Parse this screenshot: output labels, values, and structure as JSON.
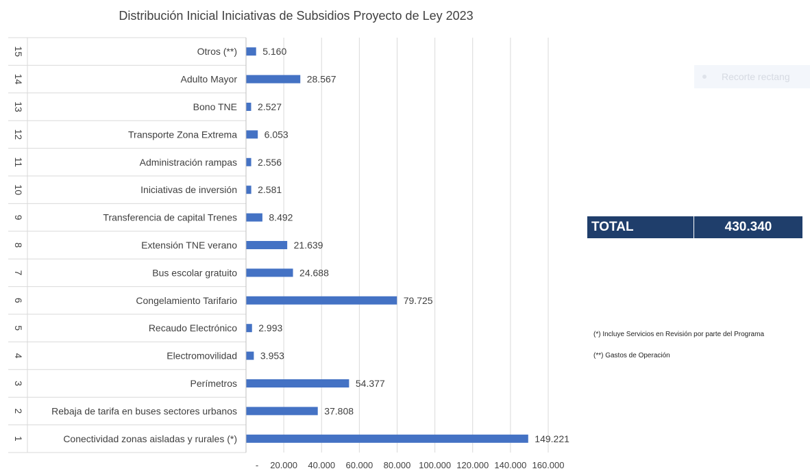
{
  "chart_data": {
    "type": "bar",
    "orientation": "horizontal",
    "title": "Distribución Inicial Iniciativas de Subsidios Proyecto de Ley 2023",
    "row_numbers": [
      "15",
      "14",
      "13",
      "12",
      "11",
      "10",
      "9",
      "8",
      "7",
      "6",
      "5",
      "4",
      "3",
      "2",
      "1"
    ],
    "categories": [
      "Otros (**)",
      "Adulto Mayor",
      "Bono TNE",
      "Transporte Zona Extrema",
      "Administración rampas",
      "Iniciativas de inversión",
      "Transferencia de capital Trenes",
      "Extensión TNE verano",
      "Bus escolar gratuito",
      "Congelamiento Tarifario",
      "Recaudo Electrónico",
      "Electromovilidad",
      "Perímetros",
      "Rebaja de tarifa en buses sectores urbanos",
      "Conectividad zonas aisladas y rurales (*)"
    ],
    "values": [
      5160,
      28567,
      2527,
      6053,
      2556,
      2581,
      8492,
      21639,
      24688,
      79725,
      2993,
      3953,
      54377,
      37808,
      149221
    ],
    "value_labels": [
      "5.160",
      "28.567",
      "2.527",
      "6.053",
      "2.556",
      "2.581",
      "8.492",
      "21.639",
      "24.688",
      "79.725",
      "2.993",
      "3.953",
      "54.377",
      "37.808",
      "149.221"
    ],
    "xlim": [
      0,
      160000
    ],
    "x_ticks": [
      0,
      20000,
      40000,
      60000,
      80000,
      100000,
      120000,
      140000,
      160000
    ],
    "x_tick_labels": [
      "-",
      "20.000",
      "40.000",
      "60.000",
      "80.000",
      "100.000",
      "120.000",
      "140.000",
      "160.000"
    ],
    "grid": true,
    "bar_color": "#4472c4"
  },
  "total": {
    "label": "TOTAL",
    "value": "430.340"
  },
  "notes": {
    "note_1": "(*) Incluye Servicios en Revisión por parte del Programa",
    "note_2": "(**) Gastos de Operación"
  },
  "overlay": {
    "label": "Recorte rectang",
    "icon": "circle-icon"
  }
}
